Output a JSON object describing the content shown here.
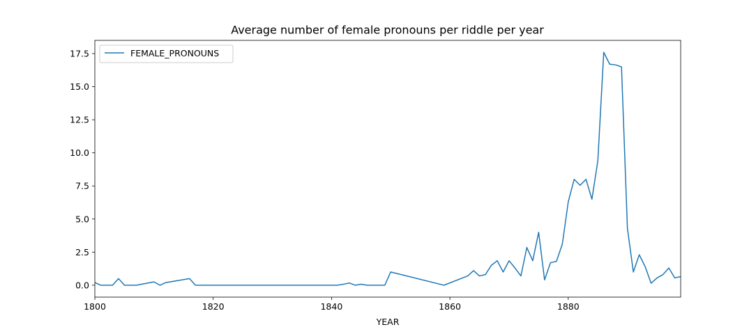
{
  "chart_data": {
    "type": "line",
    "title": "Average number of female pronouns per riddle per year",
    "xlabel": "YEAR",
    "ylabel": "",
    "xlim": [
      1800,
      1899
    ],
    "ylim": [
      -0.9,
      18.5
    ],
    "xticks": [
      1800,
      1820,
      1840,
      1860,
      1880
    ],
    "xtick_labels": [
      "1800",
      "1820",
      "1840",
      "1860",
      "1880"
    ],
    "yticks": [
      0.0,
      2.5,
      5.0,
      7.5,
      10.0,
      12.5,
      15.0,
      17.5
    ],
    "ytick_labels": [
      "0.0",
      "2.5",
      "5.0",
      "7.5",
      "10.0",
      "12.5",
      "15.0",
      "17.5"
    ],
    "grid": false,
    "legend": {
      "placement": "top-left"
    },
    "series": [
      {
        "name": "FEMALE_PRONOUNS",
        "color": "#1f77b4",
        "x": [
          1800,
          1801,
          1802,
          1803,
          1804,
          1805,
          1806,
          1807,
          1810,
          1811,
          1812,
          1816,
          1817,
          1841,
          1842,
          1843,
          1844,
          1845,
          1846,
          1847,
          1848,
          1849,
          1850,
          1859,
          1863,
          1864,
          1865,
          1866,
          1867,
          1868,
          1869,
          1870,
          1871,
          1872,
          1873,
          1874,
          1875,
          1876,
          1877,
          1878,
          1879,
          1880,
          1881,
          1882,
          1883,
          1884,
          1885,
          1886,
          1887,
          1888,
          1889,
          1890,
          1891,
          1892,
          1893,
          1894,
          1895,
          1896,
          1897,
          1898,
          1899
        ],
        "values": [
          0.2,
          0.0,
          0.0,
          0.0,
          0.5,
          0.0,
          0.0,
          0.0,
          0.25,
          0.0,
          0.2,
          0.5,
          0.0,
          0.0,
          0.07,
          0.17,
          0.0,
          0.07,
          0.0,
          0.0,
          0.0,
          0.0,
          1.0,
          0.0,
          0.7,
          1.1,
          0.7,
          0.8,
          1.5,
          1.85,
          1.0,
          1.85,
          1.3,
          0.7,
          2.85,
          1.85,
          4.0,
          0.4,
          1.7,
          1.8,
          3.1,
          6.3,
          8.0,
          7.55,
          8.0,
          6.5,
          9.4,
          17.6,
          16.7,
          16.65,
          16.5,
          4.3,
          1.0,
          2.3,
          1.4,
          0.15,
          0.55,
          0.8,
          1.3,
          0.55,
          0.65
        ]
      }
    ]
  }
}
